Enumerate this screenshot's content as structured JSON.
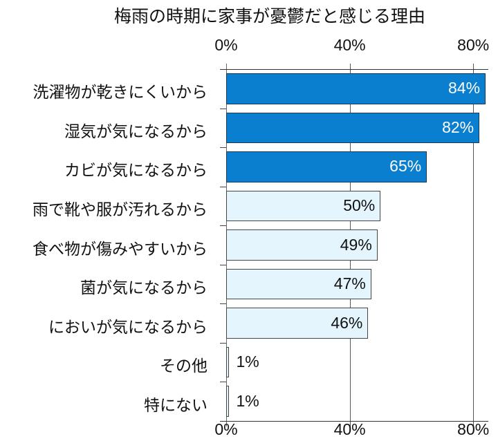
{
  "title": "梅雨の時期に家事が憂鬱だと感じる理由",
  "axis": {
    "ticks": [
      "0%",
      "40%",
      "80%"
    ],
    "tick_values": [
      0,
      40,
      80
    ]
  },
  "bars": [
    {
      "label": "洗濯物が乾きにくいから",
      "value": 84,
      "display": "84%",
      "style": "dark"
    },
    {
      "label": "湿気が気になるから",
      "value": 82,
      "display": "82%",
      "style": "dark"
    },
    {
      "label": "カビが気になるから",
      "value": 65,
      "display": "65%",
      "style": "dark"
    },
    {
      "label": "雨で靴や服が汚れるから",
      "value": 50,
      "display": "50%",
      "style": "light"
    },
    {
      "label": "食べ物が傷みやすいから",
      "value": 49,
      "display": "49%",
      "style": "light"
    },
    {
      "label": "菌が気になるから",
      "value": 47,
      "display": "47%",
      "style": "light"
    },
    {
      "label": "においが気になるから",
      "value": 46,
      "display": "46%",
      "style": "light"
    },
    {
      "label": "その他",
      "value": 1,
      "display": "1%",
      "style": "light"
    },
    {
      "label": "特にない",
      "value": 1,
      "display": "1%",
      "style": "light"
    }
  ],
  "colors": {
    "highlight": "#0a7fd0",
    "normal": "#e4f5fd",
    "highlight_text": "#ffffff",
    "normal_text": "#111111"
  },
  "chart_data": {
    "type": "bar",
    "orientation": "horizontal",
    "title": "梅雨の時期に家事が憂鬱だと感じる理由",
    "categories": [
      "洗濯物が乾きにくいから",
      "湿気が気になるから",
      "カビが気になるから",
      "雨で靴や服が汚れるから",
      "食べ物が傷みやすいから",
      "菌が気になるから",
      "においが気になるから",
      "その他",
      "特にない"
    ],
    "values": [
      84,
      82,
      65,
      50,
      49,
      47,
      46,
      1,
      1
    ],
    "unit": "%",
    "xlabel": "",
    "ylabel": "",
    "xlim": [
      0,
      84
    ],
    "xticks": [
      "0%",
      "40%",
      "80%"
    ],
    "xticks_position": "top and bottom",
    "grid": true,
    "highlighted_top": 3,
    "legend": null
  }
}
